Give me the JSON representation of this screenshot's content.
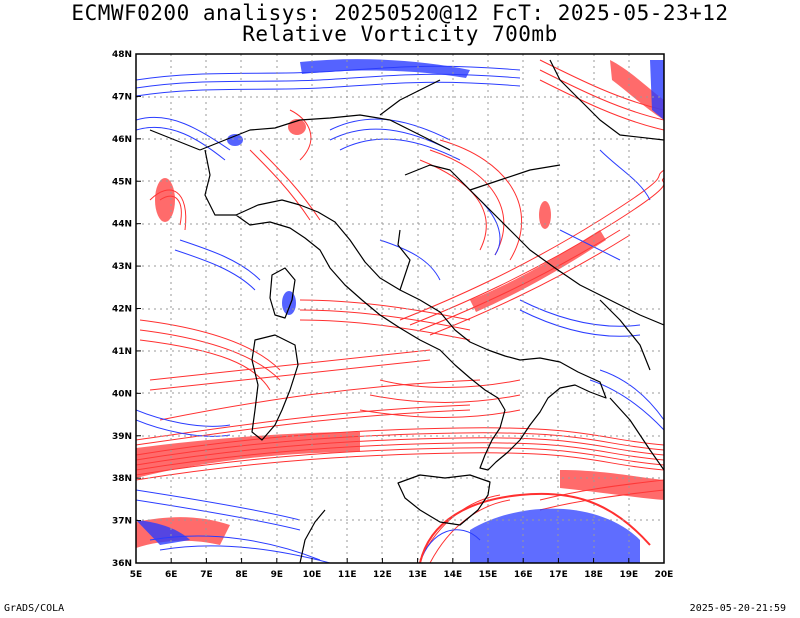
{
  "title_line1": "ECMWF0200 analisys: 20250520@12 FcT: 2025-05-23+12",
  "title_line2": "Relative Vorticity 700mb",
  "footer_left": "GrADS/COLA",
  "footer_right": "2025-05-20-21:59",
  "map": {
    "lat_labels": [
      "48N",
      "47N",
      "46N",
      "45N",
      "44N",
      "43N",
      "42N",
      "41N",
      "40N",
      "39N",
      "38N",
      "37N",
      "36N"
    ],
    "lon_labels": [
      "5E",
      "6E",
      "7E",
      "8E",
      "9E",
      "10E",
      "11E",
      "12E",
      "13E",
      "14E",
      "15E",
      "16E",
      "17E",
      "18E",
      "19E",
      "20E"
    ],
    "lat_range": [
      36,
      48
    ],
    "lon_range": [
      5,
      20
    ],
    "colors": {
      "positive_vorticity": "#ff3030",
      "negative_vorticity": "#2a3cff",
      "coastline": "#000000",
      "gridline": "#999999"
    }
  }
}
